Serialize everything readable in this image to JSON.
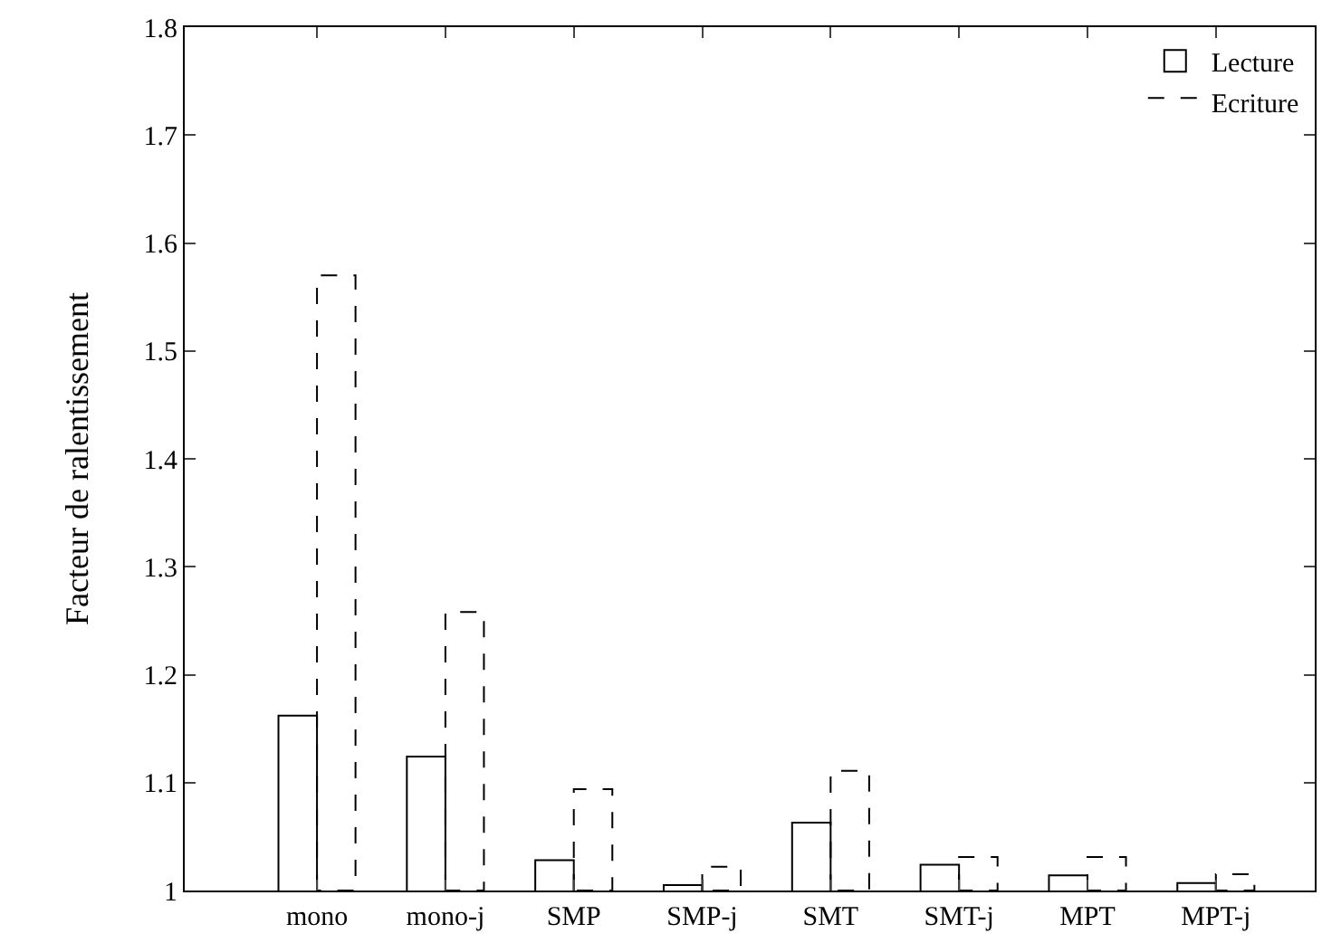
{
  "chart_data": {
    "type": "bar",
    "ylabel": "Facteur de ralentissement",
    "categories": [
      "mono",
      "mono-j",
      "SMP",
      "SMP-j",
      "SMT",
      "SMT-j",
      "MPT",
      "MPT-j"
    ],
    "series": [
      {
        "name": "Lecture",
        "color": "#000000",
        "line_style": "solid",
        "values": [
          1.162,
          1.124,
          1.028,
          1.005,
          1.063,
          1.024,
          1.014,
          1.007
        ]
      },
      {
        "name": "Ecriture",
        "color": "#000000",
        "line_style": "dashed",
        "values": [
          1.57,
          1.258,
          1.094,
          1.022,
          1.111,
          1.031,
          1.031,
          1.015
        ]
      }
    ],
    "ylim": [
      1,
      1.8
    ],
    "yticks": [
      1,
      1.1,
      1.2,
      1.3,
      1.4,
      1.5,
      1.6,
      1.7,
      1.8
    ],
    "legend": "top right"
  }
}
